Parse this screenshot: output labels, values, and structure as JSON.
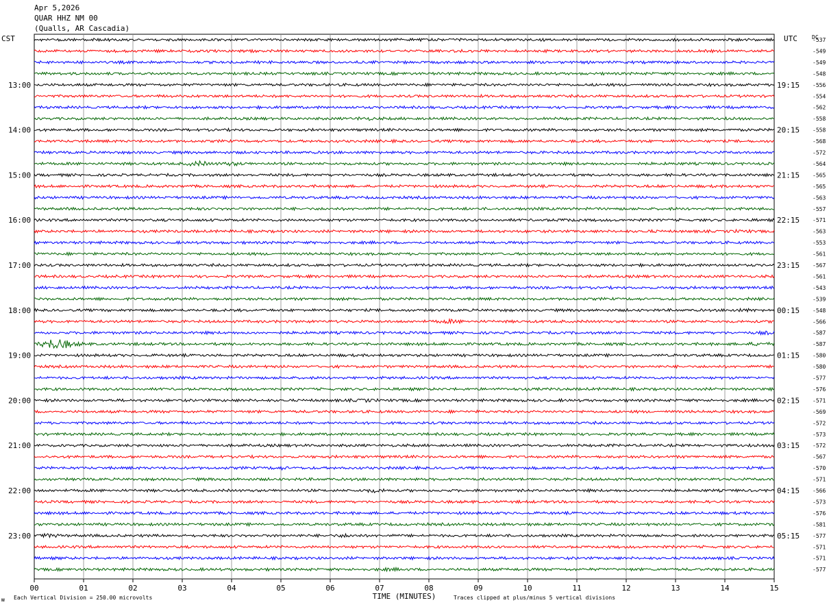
{
  "header": {
    "date": "Apr 5,2026",
    "station": "QUAR HHZ NM 00",
    "location": "(Qualls, AR Cascadia)"
  },
  "left_axis_label": "CST",
  "right_axis_label": "UTC",
  "dc_label": "DC",
  "footer": {
    "scale_note": "Each Vertical Division =  250.00 microvolts",
    "clip_note": "Traces clipped at plus/minus 5 vertical divisions",
    "corner_mark": "ᴍ"
  },
  "chart_data": {
    "type": "line",
    "title": "",
    "xlabel": "TIME (MINUTES)",
    "xlim": [
      0,
      15
    ],
    "x_ticks": [
      "00",
      "01",
      "02",
      "03",
      "04",
      "05",
      "06",
      "07",
      "08",
      "09",
      "10",
      "11",
      "12",
      "13",
      "14",
      "15"
    ],
    "trace_colors": [
      "#000000",
      "#ff0000",
      "#0000ff",
      "#006400"
    ],
    "traces_per_hour": 4,
    "left_hour_labels": [
      "13:00",
      "14:00",
      "15:00",
      "16:00",
      "17:00",
      "18:00",
      "19:00",
      "20:00",
      "21:00",
      "22:00",
      "23:00"
    ],
    "right_hour_labels": [
      "19:15",
      "20:15",
      "21:15",
      "22:15",
      "23:15",
      "00:15",
      "01:15",
      "02:15",
      "03:15",
      "04:15",
      "05:15"
    ],
    "dc_offsets": [
      -537,
      -549,
      -549,
      -548,
      -556,
      -554,
      -562,
      -558,
      -558,
      -568,
      -572,
      -564,
      -565,
      -565,
      -563,
      -557,
      -571,
      -563,
      -553,
      -561,
      -567,
      -561,
      -543,
      -539,
      -548,
      -566,
      -587,
      -587,
      -580,
      -580,
      -577,
      -576,
      -571,
      -569,
      -572,
      -573,
      -572,
      -567,
      -570,
      -571,
      -566,
      -573,
      -576,
      -581,
      -577,
      -571,
      -571,
      -577
    ],
    "events": [
      {
        "trace": 7,
        "minute": 6.7,
        "strength": 1.6
      },
      {
        "trace": 11,
        "minute": 3.3,
        "strength": 2.2
      },
      {
        "trace": 11,
        "minute": 4.0,
        "strength": 1.8
      },
      {
        "trace": 16,
        "minute": 10.8,
        "strength": 1.4
      },
      {
        "trace": 17,
        "minute": 12.5,
        "strength": 1.3
      },
      {
        "trace": 17,
        "minute": 14.3,
        "strength": 1.5
      },
      {
        "trace": 24,
        "minute": 14.3,
        "strength": 1.5
      },
      {
        "trace": 25,
        "minute": 8.4,
        "strength": 1.8
      },
      {
        "trace": 26,
        "minute": 14.9,
        "strength": 1.5
      },
      {
        "trace": 27,
        "minute": 0.35,
        "strength": 4.0
      },
      {
        "trace": 27,
        "minute": 0.7,
        "strength": 2.2
      },
      {
        "trace": 27,
        "minute": 14.7,
        "strength": 1.8
      },
      {
        "trace": 32,
        "minute": 6.7,
        "strength": 1.6
      },
      {
        "trace": 38,
        "minute": 5.0,
        "strength": 1.5
      },
      {
        "trace": 40,
        "minute": 6.9,
        "strength": 1.8
      },
      {
        "trace": 44,
        "minute": 0.3,
        "strength": 1.8
      },
      {
        "trace": 44,
        "minute": 6.3,
        "strength": 1.6
      },
      {
        "trace": 47,
        "minute": 7.2,
        "strength": 1.3
      }
    ]
  }
}
